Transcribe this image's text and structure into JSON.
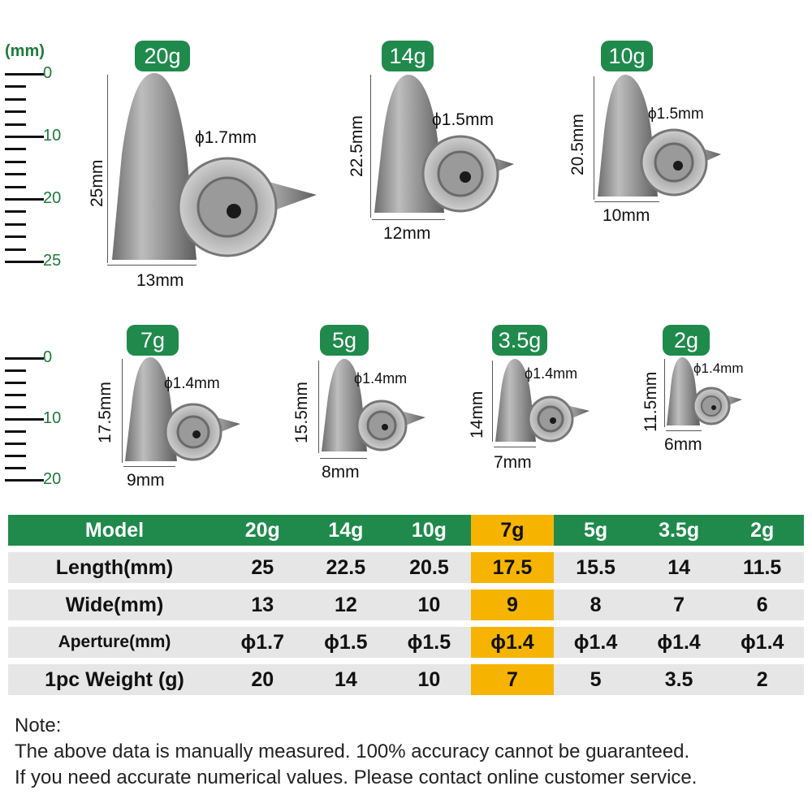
{
  "unit_label": "(mm)",
  "ruler_top": {
    "labels": [
      "0",
      "10",
      "20",
      "25"
    ]
  },
  "ruler_bottom": {
    "labels": [
      "0",
      "10",
      "20"
    ]
  },
  "sinkers": [
    {
      "badge": "20g",
      "height": "25mm",
      "width": "13mm",
      "aperture": "ϕ1.7mm"
    },
    {
      "badge": "14g",
      "height": "22.5mm",
      "width": "12mm",
      "aperture": "ϕ1.5mm"
    },
    {
      "badge": "10g",
      "height": "20.5mm",
      "width": "10mm",
      "aperture": "ϕ1.5mm"
    },
    {
      "badge": "7g",
      "height": "17.5mm",
      "width": "9mm",
      "aperture": "ϕ1.4mm"
    },
    {
      "badge": "5g",
      "height": "15.5mm",
      "width": "8mm",
      "aperture": "ϕ1.4mm"
    },
    {
      "badge": "3.5g",
      "height": "14mm",
      "width": "7mm",
      "aperture": "ϕ1.4mm"
    },
    {
      "badge": "2g",
      "height": "11.5mm",
      "width": "6mm",
      "aperture": "ϕ1.4mm"
    }
  ],
  "table": {
    "highlight_column": "7g",
    "header": [
      "Model",
      "20g",
      "14g",
      "10g",
      "7g",
      "5g",
      "3.5g",
      "2g"
    ],
    "rows": [
      [
        "Length(mm)",
        "25",
        "22.5",
        "20.5",
        "17.5",
        "15.5",
        "14",
        "11.5"
      ],
      [
        "Wide(mm)",
        "13",
        "12",
        "10",
        "9",
        "8",
        "7",
        "6"
      ],
      [
        "Aperture(mm)",
        "ϕ1.7",
        "ϕ1.5",
        "ϕ1.5",
        "ϕ1.4",
        "ϕ1.4",
        "ϕ1.4",
        "ϕ1.4"
      ],
      [
        "1pc Weight (g)",
        "20",
        "14",
        "10",
        "7",
        "5",
        "3.5",
        "2"
      ]
    ]
  },
  "note": {
    "title": "Note:",
    "line1": "The above data is manually measured. 100% accuracy cannot be guaranteed.",
    "line2": "If you need accurate numerical values. Please contact online customer service."
  },
  "colors": {
    "green": "#1f8a4c",
    "highlight": "#f6b400",
    "row_gray": "#e6e6e6"
  }
}
